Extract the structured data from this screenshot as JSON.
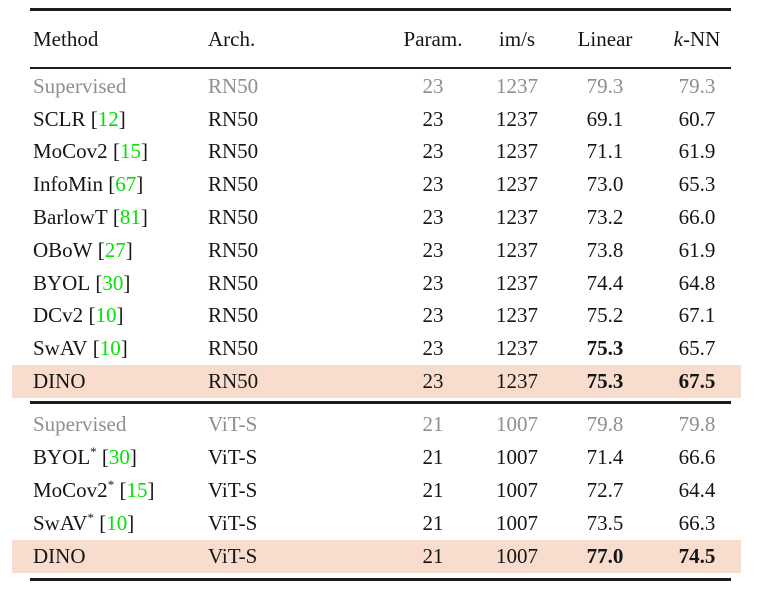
{
  "table": {
    "colors": {
      "highlight_row": "#f8dccd",
      "citation_green": "#00e400",
      "muted_gray": "#8e8e8e",
      "rule_black": "#1c1c1c",
      "text_black": "#151515"
    },
    "header": {
      "method": "Method",
      "arch": "Arch.",
      "param": "Param.",
      "ims": "im/s",
      "linear": "Linear",
      "knn_k": "k",
      "knn_rest": "-NN"
    },
    "sections": [
      {
        "rows": [
          {
            "method": "Supervised",
            "sup": "",
            "cite_open": "",
            "cite": "",
            "cite_close": "",
            "arch": "RN50",
            "params": "23",
            "ims": "1237",
            "linear": "79.3",
            "knn": "79.3",
            "muted": true,
            "highlight": false,
            "linear_bold": false,
            "knn_bold": false
          },
          {
            "method": "SCLR",
            "sup": "",
            "cite_open": " [",
            "cite": "12",
            "cite_close": "]",
            "arch": "RN50",
            "params": "23",
            "ims": "1237",
            "linear": "69.1",
            "knn": "60.7",
            "muted": false,
            "highlight": false,
            "linear_bold": false,
            "knn_bold": false
          },
          {
            "method": "MoCov2",
            "sup": "",
            "cite_open": " [",
            "cite": "15",
            "cite_close": "]",
            "arch": "RN50",
            "params": "23",
            "ims": "1237",
            "linear": "71.1",
            "knn": "61.9",
            "muted": false,
            "highlight": false,
            "linear_bold": false,
            "knn_bold": false
          },
          {
            "method": "InfoMin",
            "sup": "",
            "cite_open": " [",
            "cite": "67",
            "cite_close": "]",
            "arch": "RN50",
            "params": "23",
            "ims": "1237",
            "linear": "73.0",
            "knn": "65.3",
            "muted": false,
            "highlight": false,
            "linear_bold": false,
            "knn_bold": false
          },
          {
            "method": "BarlowT",
            "sup": "",
            "cite_open": " [",
            "cite": "81",
            "cite_close": "]",
            "arch": "RN50",
            "params": "23",
            "ims": "1237",
            "linear": "73.2",
            "knn": "66.0",
            "muted": false,
            "highlight": false,
            "linear_bold": false,
            "knn_bold": false
          },
          {
            "method": "OBoW",
            "sup": "",
            "cite_open": " [",
            "cite": "27",
            "cite_close": "]",
            "arch": "RN50",
            "params": "23",
            "ims": "1237",
            "linear": "73.8",
            "knn": "61.9",
            "muted": false,
            "highlight": false,
            "linear_bold": false,
            "knn_bold": false
          },
          {
            "method": "BYOL",
            "sup": "",
            "cite_open": " [",
            "cite": "30",
            "cite_close": "]",
            "arch": "RN50",
            "params": "23",
            "ims": "1237",
            "linear": "74.4",
            "knn": "64.8",
            "muted": false,
            "highlight": false,
            "linear_bold": false,
            "knn_bold": false
          },
          {
            "method": "DCv2",
            "sup": "",
            "cite_open": " [",
            "cite": "10",
            "cite_close": "]",
            "arch": "RN50",
            "params": "23",
            "ims": "1237",
            "linear": "75.2",
            "knn": "67.1",
            "muted": false,
            "highlight": false,
            "linear_bold": false,
            "knn_bold": false
          },
          {
            "method": "SwAV",
            "sup": "",
            "cite_open": " [",
            "cite": "10",
            "cite_close": "]",
            "arch": "RN50",
            "params": "23",
            "ims": "1237",
            "linear": "75.3",
            "knn": "65.7",
            "muted": false,
            "highlight": false,
            "linear_bold": true,
            "knn_bold": false
          },
          {
            "method": "DINO",
            "sup": "",
            "cite_open": "",
            "cite": "",
            "cite_close": "",
            "arch": "RN50",
            "params": "23",
            "ims": "1237",
            "linear": "75.3",
            "knn": "67.5",
            "muted": false,
            "highlight": true,
            "linear_bold": true,
            "knn_bold": true
          }
        ]
      },
      {
        "rows": [
          {
            "method": "Supervised",
            "sup": "",
            "cite_open": "",
            "cite": "",
            "cite_close": "",
            "arch": "ViT-S",
            "params": "21",
            "ims": "1007",
            "linear": "79.8",
            "knn": "79.8",
            "muted": true,
            "highlight": false,
            "linear_bold": false,
            "knn_bold": false
          },
          {
            "method": "BYOL",
            "sup": "*",
            "cite_open": " [",
            "cite": "30",
            "cite_close": "]",
            "arch": "ViT-S",
            "params": "21",
            "ims": "1007",
            "linear": "71.4",
            "knn": "66.6",
            "muted": false,
            "highlight": false,
            "linear_bold": false,
            "knn_bold": false
          },
          {
            "method": "MoCov2",
            "sup": "*",
            "cite_open": " [",
            "cite": "15",
            "cite_close": "]",
            "arch": "ViT-S",
            "params": "21",
            "ims": "1007",
            "linear": "72.7",
            "knn": "64.4",
            "muted": false,
            "highlight": false,
            "linear_bold": false,
            "knn_bold": false
          },
          {
            "method": "SwAV",
            "sup": "*",
            "cite_open": " [",
            "cite": "10",
            "cite_close": "]",
            "arch": "ViT-S",
            "params": "21",
            "ims": "1007",
            "linear": "73.5",
            "knn": "66.3",
            "muted": false,
            "highlight": false,
            "linear_bold": false,
            "knn_bold": false
          },
          {
            "method": "DINO",
            "sup": "",
            "cite_open": "",
            "cite": "",
            "cite_close": "",
            "arch": "ViT-S",
            "params": "21",
            "ims": "1007",
            "linear": "77.0",
            "knn": "74.5",
            "muted": false,
            "highlight": true,
            "linear_bold": true,
            "knn_bold": true
          }
        ]
      }
    ]
  }
}
